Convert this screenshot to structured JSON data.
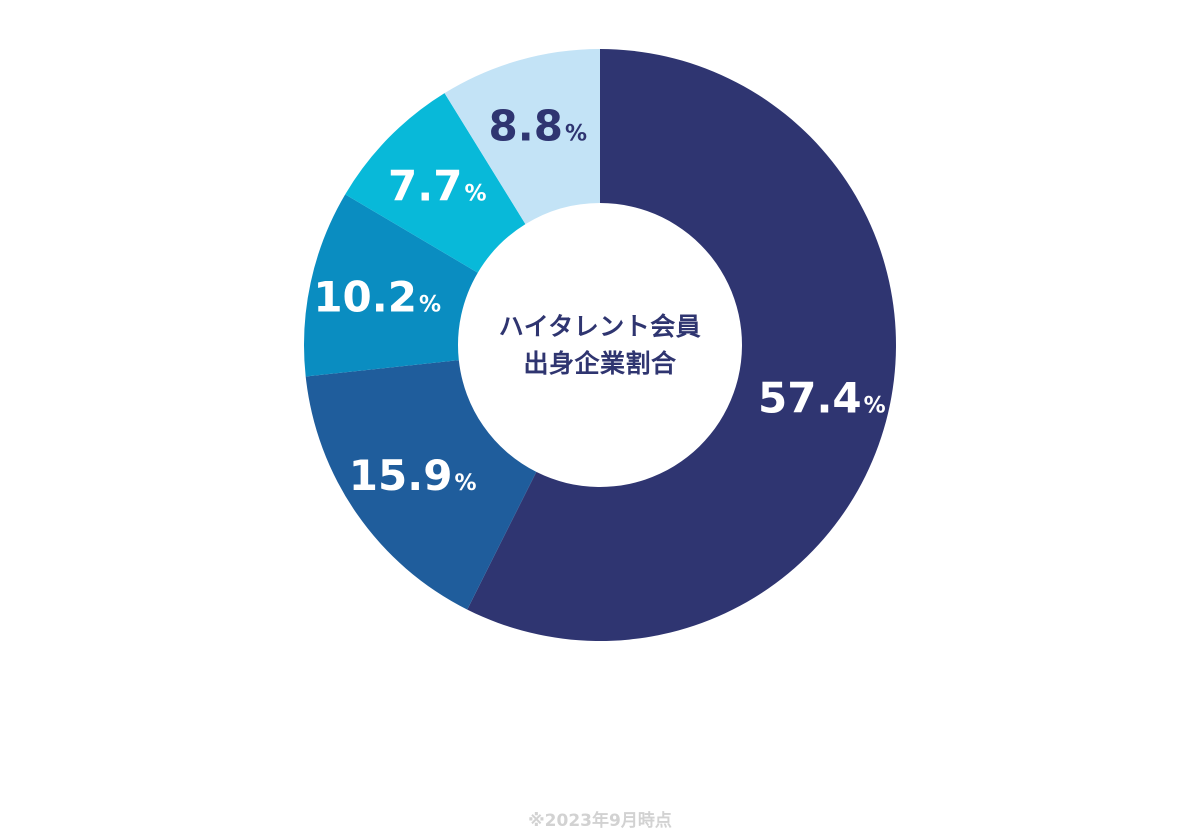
{
  "chart_data": {
    "type": "pie",
    "variant": "donut",
    "center_label": [
      "ハイタレント会員",
      "出身企業割合"
    ],
    "slices": [
      {
        "value": 57.4,
        "label": "57.4",
        "unit": "%",
        "color": "#2f3571",
        "label_color": "#ffffff"
      },
      {
        "value": 15.9,
        "label": "15.9",
        "unit": "%",
        "color": "#1f5d9c",
        "label_color": "#ffffff"
      },
      {
        "value": 10.2,
        "label": "10.2",
        "unit": "%",
        "color": "#0a8dc1",
        "label_color": "#ffffff"
      },
      {
        "value": 7.7,
        "label": "7.7",
        "unit": "%",
        "color": "#08b9d9",
        "label_color": "#ffffff"
      },
      {
        "value": 8.8,
        "label": "8.8",
        "unit": "%",
        "color": "#c3e3f6",
        "label_color": "#2f3571"
      }
    ],
    "start_direction": "top",
    "order": "clockwise"
  },
  "footnote": "※2023年9月時点"
}
